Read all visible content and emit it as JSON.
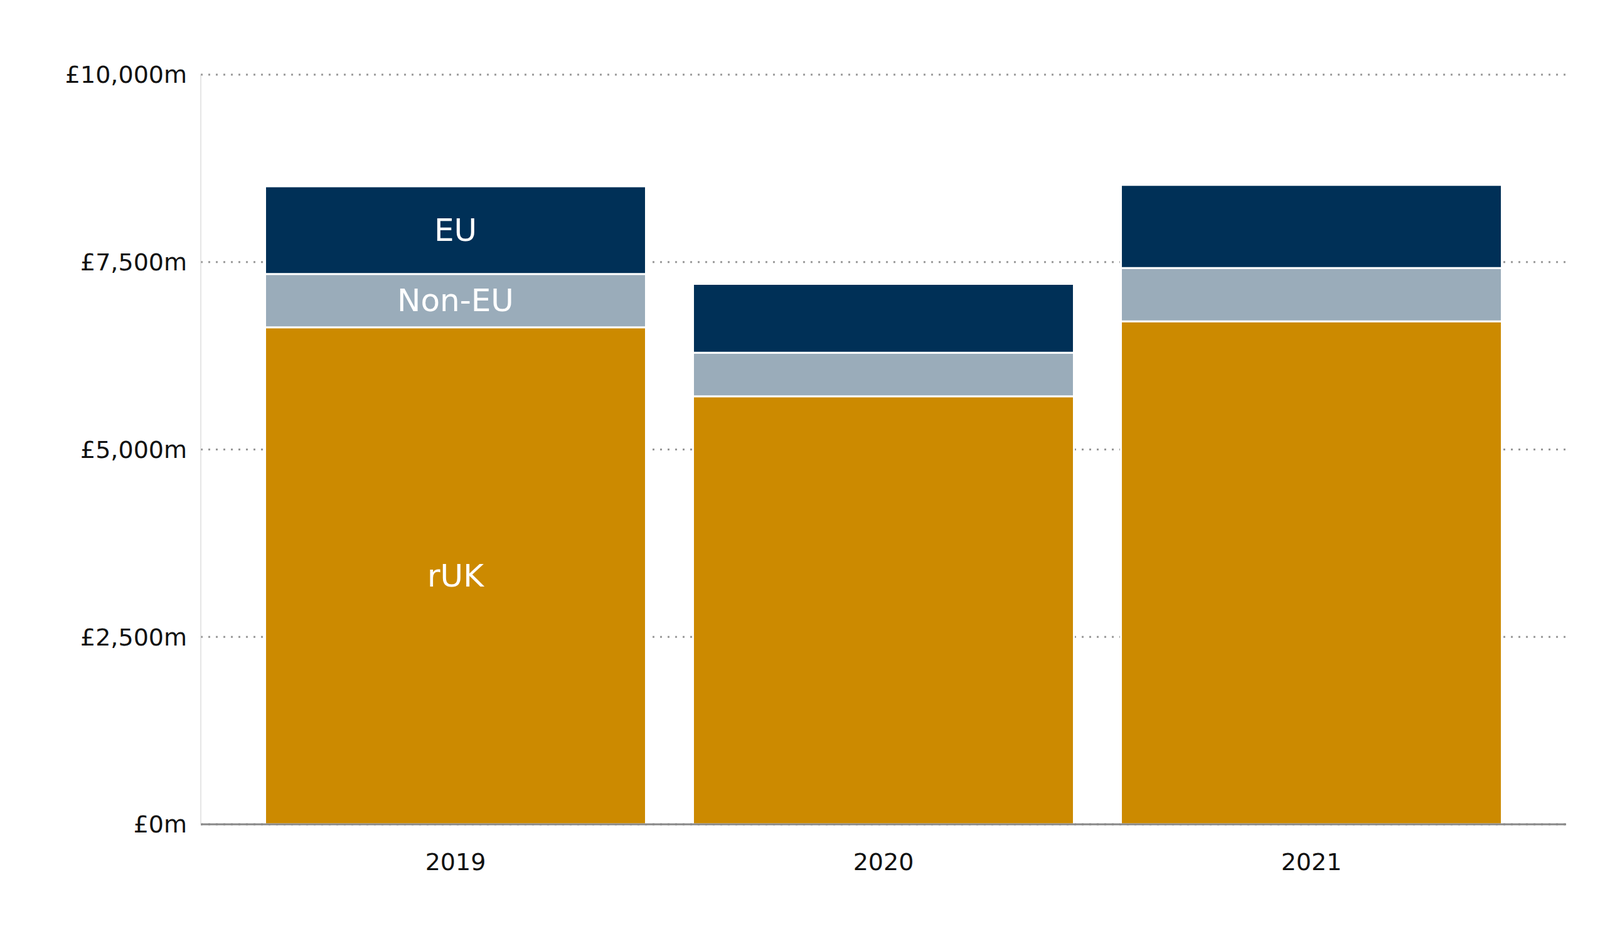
{
  "chart_data": {
    "type": "bar",
    "stacked": true,
    "grid": true,
    "categories": [
      "2019",
      "2020",
      "2021"
    ],
    "series": [
      {
        "name": "rUK",
        "color": "#cc8a00",
        "values": [
          6630,
          5710,
          6710
        ]
      },
      {
        "name": "Non-EU",
        "color": "#9aacba",
        "values": [
          710,
          580,
          710
        ]
      },
      {
        "name": "EU",
        "color": "#003057",
        "values": [
          1170,
          920,
          1110
        ]
      }
    ],
    "ylim": [
      0,
      10000
    ],
    "yticks": [
      {
        "value": 0,
        "label": "£0m"
      },
      {
        "value": 2500,
        "label": "£2,500m"
      },
      {
        "value": 5000,
        "label": "£5,000m"
      },
      {
        "value": 7500,
        "label": "£7,500m"
      },
      {
        "value": 10000,
        "label": "£10,000m"
      }
    ]
  }
}
